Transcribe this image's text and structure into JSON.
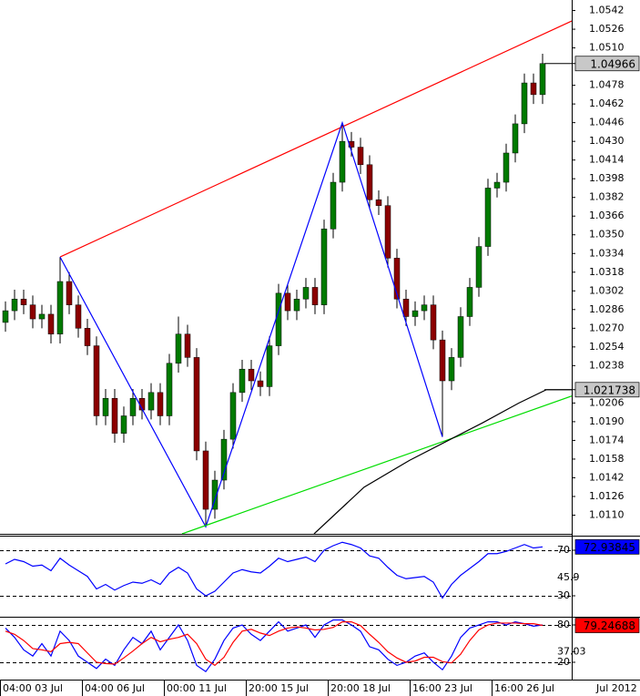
{
  "chart_data": [
    {
      "type": "candlestick",
      "open": [
        1.0275,
        1.0285,
        1.0295,
        1.029,
        1.0278,
        1.0282,
        1.0265,
        1.031,
        1.029,
        1.027,
        1.0255,
        1.0195,
        1.021,
        1.018,
        1.0195,
        1.021,
        1.02,
        1.0215,
        1.0195,
        1.024,
        1.0265,
        1.0245,
        1.0165,
        1.0115,
        1.014,
        1.0175,
        1.0215,
        1.0235,
        1.0225,
        1.022,
        1.0255,
        1.03,
        1.0285,
        1.0295,
        1.0305,
        1.029,
        1.0355,
        1.0395,
        1.043,
        1.0425,
        1.041,
        1.038,
        1.0375,
        1.033,
        1.0295,
        1.028,
        1.0285,
        1.029,
        1.026,
        1.0225,
        1.0245,
        1.028,
        1.0305,
        1.034,
        1.039,
        1.0395,
        1.042,
        1.0445,
        1.048,
        1.047
      ],
      "high": [
        1.0293,
        1.0303,
        1.0303,
        1.0298,
        1.029,
        1.029,
        1.0331,
        1.0318,
        1.0298,
        1.0278,
        1.0263,
        1.0218,
        1.0218,
        1.0203,
        1.0218,
        1.0218,
        1.0223,
        1.0223,
        1.0248,
        1.028,
        1.0273,
        1.0253,
        1.0173,
        1.0148,
        1.0183,
        1.0223,
        1.0243,
        1.0243,
        1.0233,
        1.0263,
        1.0308,
        1.0308,
        1.0303,
        1.0313,
        1.0313,
        1.0363,
        1.0403,
        1.0446,
        1.0438,
        1.0433,
        1.0418,
        1.0388,
        1.0383,
        1.0338,
        1.0303,
        1.0293,
        1.0298,
        1.0298,
        1.0268,
        1.0253,
        1.0288,
        1.0313,
        1.0348,
        1.0398,
        1.0403,
        1.0428,
        1.0453,
        1.0488,
        1.0488,
        1.0505
      ],
      "low": [
        1.0267,
        1.0277,
        1.0282,
        1.027,
        1.027,
        1.0257,
        1.0257,
        1.0282,
        1.0262,
        1.0247,
        1.0187,
        1.0187,
        1.0172,
        1.0172,
        1.0187,
        1.0192,
        1.0192,
        1.0187,
        1.0187,
        1.0232,
        1.0237,
        1.0157,
        1.01,
        1.0107,
        1.0132,
        1.0167,
        1.0207,
        1.0217,
        1.0212,
        1.0212,
        1.0247,
        1.0277,
        1.0277,
        1.0287,
        1.0282,
        1.0282,
        1.0347,
        1.0387,
        1.0417,
        1.0402,
        1.0372,
        1.0367,
        1.0322,
        1.0287,
        1.0272,
        1.0272,
        1.0277,
        1.0252,
        1.0177,
        1.0217,
        1.0237,
        1.0272,
        1.0297,
        1.0332,
        1.0382,
        1.0387,
        1.0412,
        1.0437,
        1.0462,
        1.0462
      ],
      "close": [
        1.0285,
        1.0295,
        1.029,
        1.0278,
        1.0282,
        1.0265,
        1.031,
        1.029,
        1.027,
        1.0255,
        1.0195,
        1.021,
        1.018,
        1.0195,
        1.021,
        1.02,
        1.0215,
        1.0195,
        1.024,
        1.0265,
        1.0245,
        1.0165,
        1.0115,
        1.014,
        1.0175,
        1.0215,
        1.0235,
        1.0225,
        1.022,
        1.0255,
        1.03,
        1.0285,
        1.0295,
        1.0305,
        1.029,
        1.0355,
        1.0395,
        1.043,
        1.0425,
        1.041,
        1.038,
        1.0375,
        1.033,
        1.0295,
        1.028,
        1.0285,
        1.029,
        1.026,
        1.0225,
        1.0245,
        1.028,
        1.0305,
        1.034,
        1.039,
        1.0395,
        1.042,
        1.0445,
        1.048,
        1.047,
        1.04966
      ],
      "up_color": "#007a00",
      "down_color": "#8b0000",
      "ylim": [
        1.0094,
        1.0551
      ],
      "yticks": [
        1.0542,
        1.0526,
        {
          "value": 1.051,
          "label": "1.0510"
        },
        1.0478,
        1.0462,
        1.0446,
        {
          "value": 1.043,
          "label": "1.0430"
        },
        1.0414,
        1.0398,
        1.0382,
        1.0366,
        {
          "value": 1.035,
          "label": "1.0350"
        },
        1.0334,
        1.0318,
        1.0302,
        1.0286,
        {
          "value": 1.027,
          "label": "1.0270"
        },
        1.0254,
        1.0238,
        1.0206,
        {
          "value": 1.019,
          "label": "1.0190"
        },
        1.0174,
        1.0158,
        1.0142,
        1.0126,
        {
          "value": 1.011,
          "label": "1.0110"
        }
      ],
      "xlim": [
        -0.6,
        62.2
      ],
      "xticks": [
        {
          "value": -0.6,
          "label": "04:00 03 Jul"
        },
        {
          "value": 8.4,
          "label": "04:00 06 Jul"
        },
        {
          "value": 17.4,
          "label": "00:00 11 Jul"
        },
        {
          "value": 26.4,
          "label": "20:00 15 Jul"
        },
        {
          "value": 35.4,
          "label": "20:00 18 Jul"
        },
        {
          "value": 44.4,
          "label": "16:00 23 Jul"
        },
        {
          "value": 53.4,
          "label": "16:00 26 Jul"
        }
      ],
      "x_period_label": "Jul 2012",
      "lines": [
        {
          "color": "#ff0000",
          "x": [
            6,
            62.2
          ],
          "y": [
            1.0331,
            1.0533
          ]
        },
        {
          "color": "#0000ff",
          "x": [
            6,
            22,
            37,
            48
          ],
          "y": [
            1.0331,
            1.01,
            1.0446,
            1.0177
          ]
        },
        {
          "color": "#00dd00",
          "x": [
            19.4,
            62.2
          ],
          "y": [
            1.0094,
            1.0212
          ]
        },
        {
          "color": "#000000",
          "x": [
            33.9,
            39.4,
            44.4,
            48.4,
            52.4,
            56.4,
            59.4,
            62.2
          ],
          "y": [
            1.0094,
            1.0134,
            1.0157,
            1.0173,
            1.0189,
            1.0206,
            1.021738,
            1.021738
          ]
        }
      ],
      "value_boxes": [
        {
          "value": 1.04966,
          "color": "#c8c8c8",
          "text_color": "#000000"
        },
        {
          "value": 1.021738,
          "color": "#c8c8c8",
          "text_color": "#000000"
        }
      ]
    },
    {
      "type": "line",
      "series": [
        {
          "color": "#0000ff",
          "values": [
            58,
            62,
            60,
            56,
            57,
            52,
            63,
            57,
            52,
            47,
            36,
            40,
            35,
            39,
            42,
            41,
            44,
            40,
            50,
            55,
            50,
            36,
            30,
            34,
            42,
            50,
            53,
            51,
            50,
            56,
            63,
            60,
            62,
            64,
            60,
            70,
            74,
            77,
            75,
            72,
            65,
            63,
            55,
            48,
            45,
            46,
            47,
            42,
            28,
            40,
            48,
            54,
            60,
            67,
            67,
            69,
            72,
            75,
            72,
            72.93845
          ]
        }
      ],
      "ylim": [
        12.4,
        81.2
      ],
      "yticks": [
        30,
        45.9,
        70
      ],
      "levels": [
        30,
        70
      ],
      "value_boxes": [
        {
          "value": 72.93845,
          "color": "#0000ff",
          "text_color": "#ffffff"
        }
      ]
    },
    {
      "type": "line",
      "series": [
        {
          "color": "#0000ff",
          "values": [
            75,
            60,
            40,
            30,
            50,
            30,
            70,
            55,
            30,
            20,
            10,
            25,
            15,
            40,
            60,
            50,
            70,
            40,
            60,
            80,
            55,
            15,
            5,
            25,
            55,
            75,
            80,
            65,
            55,
            70,
            85,
            70,
            75,
            80,
            60,
            80,
            88,
            88,
            80,
            70,
            45,
            40,
            25,
            15,
            20,
            30,
            35,
            20,
            8,
            30,
            60,
            75,
            80,
            85,
            85,
            80,
            85,
            82,
            78,
            80
          ]
        },
        {
          "color": "#ff0000",
          "values": [
            70,
            65,
            55,
            42,
            40,
            37,
            50,
            52,
            50,
            35,
            20,
            18,
            17,
            27,
            38,
            50,
            60,
            53,
            57,
            60,
            65,
            50,
            25,
            15,
            28,
            52,
            70,
            73,
            67,
            63,
            70,
            75,
            77,
            75,
            72,
            73,
            76,
            85,
            85,
            79,
            65,
            52,
            37,
            27,
            20,
            22,
            28,
            28,
            21,
            19,
            33,
            55,
            72,
            80,
            83,
            83,
            83,
            82,
            82,
            79.24688
          ]
        }
      ],
      "ylim": [
        -6.4,
        88.8
      ],
      "yticks": [
        20,
        37.03,
        80
      ],
      "levels": [
        20,
        80
      ],
      "value_boxes": [
        {
          "value": 79.24688,
          "color": "#ff0000",
          "text_color": "#000000"
        }
      ]
    }
  ]
}
